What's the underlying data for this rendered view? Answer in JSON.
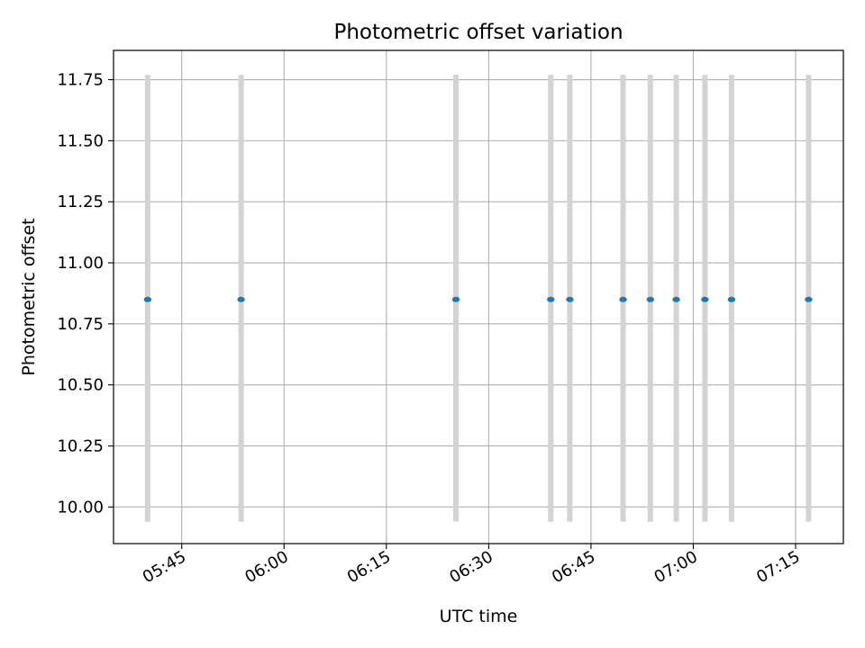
{
  "chart_data": {
    "type": "scatter",
    "title": "Photometric offset variation",
    "xlabel": "UTC time",
    "ylabel": "Photometric offset",
    "x_ticks": [
      "05:45",
      "06:00",
      "06:15",
      "06:30",
      "06:45",
      "07:00",
      "07:15"
    ],
    "xlim": [
      "05:35",
      "07:22"
    ],
    "y_ticks": [
      "10.00",
      "10.25",
      "10.50",
      "10.75",
      "11.00",
      "11.25",
      "11.50",
      "11.75"
    ],
    "ylim": [
      9.85,
      11.87
    ],
    "grid": true,
    "points": [
      {
        "x": "05:40",
        "y": 10.85,
        "y_low": 9.94,
        "y_high": 11.77
      },
      {
        "x": "05:53.7",
        "y": 10.85,
        "y_low": 9.94,
        "y_high": 11.77
      },
      {
        "x": "06:25.2",
        "y": 10.85,
        "y_low": 9.94,
        "y_high": 11.77
      },
      {
        "x": "06:39.1",
        "y": 10.85,
        "y_low": 9.94,
        "y_high": 11.77
      },
      {
        "x": "06:41.9",
        "y": 10.85,
        "y_low": 9.94,
        "y_high": 11.77
      },
      {
        "x": "06:49.7",
        "y": 10.85,
        "y_low": 9.94,
        "y_high": 11.77
      },
      {
        "x": "06:53.7",
        "y": 10.85,
        "y_low": 9.94,
        "y_high": 11.77
      },
      {
        "x": "06:57.5",
        "y": 10.85,
        "y_low": 9.94,
        "y_high": 11.77
      },
      {
        "x": "07:01.7",
        "y": 10.85,
        "y_low": 9.94,
        "y_high": 11.77
      },
      {
        "x": "07:05.6",
        "y": 10.85,
        "y_low": 9.94,
        "y_high": 11.77
      },
      {
        "x": "07:16.9",
        "y": 10.85,
        "y_low": 9.94,
        "y_high": 11.77
      }
    ],
    "colors": {
      "marker": "#1f77b4",
      "errorbar": "#d3d3d3",
      "grid": "#b0b0b0",
      "axes": "#000000"
    }
  }
}
